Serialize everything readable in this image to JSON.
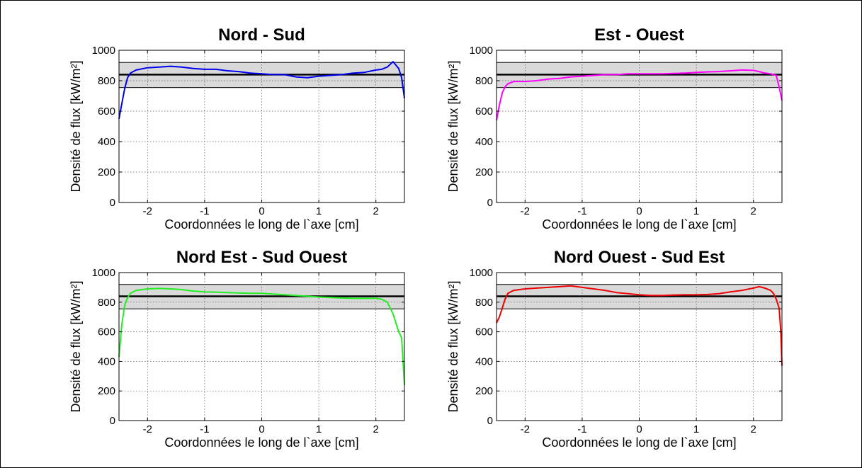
{
  "chart_data": [
    {
      "type": "line",
      "title": "Nord - Sud",
      "xlabel": "Coordonnées le long de l`axe [cm]",
      "ylabel": "Densité de flux [kW/m²]",
      "xlim": [
        -2.5,
        2.5
      ],
      "ylim": [
        0,
        1000
      ],
      "xticks": [
        -2,
        -1,
        0,
        1,
        2
      ],
      "yticks": [
        0,
        200,
        400,
        600,
        800,
        1000
      ],
      "grid": true,
      "reference_line": 840,
      "band": [
        755,
        920
      ],
      "series": [
        {
          "color": "#0000ee",
          "x": [
            -2.5,
            -2.45,
            -2.4,
            -2.35,
            -2.3,
            -2.2,
            -2.0,
            -1.8,
            -1.6,
            -1.4,
            -1.2,
            -1.0,
            -0.8,
            -0.6,
            -0.4,
            -0.2,
            0.0,
            0.2,
            0.4,
            0.6,
            0.8,
            1.0,
            1.2,
            1.4,
            1.6,
            1.8,
            2.0,
            2.1,
            2.2,
            2.3,
            2.4,
            2.45,
            2.5
          ],
          "y": [
            550,
            650,
            750,
            820,
            850,
            870,
            885,
            890,
            895,
            890,
            880,
            875,
            875,
            865,
            860,
            850,
            845,
            840,
            840,
            825,
            820,
            830,
            835,
            840,
            850,
            855,
            870,
            875,
            890,
            925,
            880,
            820,
            685
          ]
        }
      ]
    },
    {
      "type": "line",
      "title": "Est - Ouest",
      "xlabel": "Coordonnées le long de l`axe [cm]",
      "ylabel": "Densité de flux [kW/m²]",
      "xlim": [
        -2.5,
        2.5
      ],
      "ylim": [
        0,
        1000
      ],
      "xticks": [
        -2,
        -1,
        0,
        1,
        2
      ],
      "yticks": [
        0,
        200,
        400,
        600,
        800,
        1000
      ],
      "grid": true,
      "reference_line": 840,
      "band": [
        755,
        920
      ],
      "series": [
        {
          "color": "#ff00ff",
          "x": [
            -2.5,
            -2.45,
            -2.4,
            -2.35,
            -2.3,
            -2.2,
            -2.0,
            -1.8,
            -1.6,
            -1.4,
            -1.2,
            -1.0,
            -0.8,
            -0.6,
            -0.4,
            -0.2,
            0.0,
            0.2,
            0.4,
            0.6,
            0.8,
            1.0,
            1.2,
            1.4,
            1.6,
            1.8,
            2.0,
            2.1,
            2.2,
            2.3,
            2.4,
            2.45,
            2.5
          ],
          "y": [
            540,
            640,
            720,
            760,
            780,
            795,
            795,
            800,
            810,
            815,
            825,
            830,
            835,
            840,
            840,
            845,
            845,
            845,
            845,
            848,
            850,
            855,
            858,
            860,
            865,
            870,
            868,
            860,
            850,
            845,
            835,
            760,
            670
          ]
        }
      ]
    },
    {
      "type": "line",
      "title": "Nord Est - Sud Ouest",
      "xlabel": "Coordonnées le long de l`axe [cm]",
      "ylabel": "Densité de flux [kW/m²]",
      "xlim": [
        -2.5,
        2.5
      ],
      "ylim": [
        0,
        1000
      ],
      "xticks": [
        -2,
        -1,
        0,
        1,
        2
      ],
      "yticks": [
        0,
        200,
        400,
        600,
        800,
        1000
      ],
      "grid": true,
      "reference_line": 840,
      "band": [
        755,
        920
      ],
      "series": [
        {
          "color": "#22ee22",
          "x": [
            -2.5,
            -2.45,
            -2.4,
            -2.35,
            -2.3,
            -2.2,
            -2.0,
            -1.8,
            -1.6,
            -1.4,
            -1.2,
            -1.0,
            -0.8,
            -0.6,
            -0.4,
            -0.2,
            0.0,
            0.2,
            0.4,
            0.6,
            0.8,
            1.0,
            1.2,
            1.4,
            1.6,
            1.8,
            2.0,
            2.1,
            2.2,
            2.3,
            2.35,
            2.4,
            2.45,
            2.5
          ],
          "y": [
            430,
            650,
            780,
            830,
            860,
            880,
            890,
            893,
            890,
            885,
            875,
            870,
            868,
            865,
            862,
            860,
            860,
            855,
            850,
            845,
            840,
            835,
            832,
            828,
            826,
            826,
            826,
            820,
            800,
            720,
            660,
            600,
            560,
            240
          ]
        }
      ]
    },
    {
      "type": "line",
      "title": "Nord Ouest - Sud Est",
      "xlabel": "Coordonnées le long de l`axe [cm]",
      "ylabel": "Densité de flux [kW/m²]",
      "xlim": [
        -2.5,
        2.5
      ],
      "ylim": [
        0,
        1000
      ],
      "xticks": [
        -2,
        -1,
        0,
        1,
        2
      ],
      "yticks": [
        0,
        200,
        400,
        600,
        800,
        1000
      ],
      "grid": true,
      "reference_line": 840,
      "band": [
        755,
        920
      ],
      "series": [
        {
          "color": "#ee0000",
          "x": [
            -2.5,
            -2.45,
            -2.4,
            -2.35,
            -2.3,
            -2.2,
            -2.0,
            -1.8,
            -1.6,
            -1.4,
            -1.2,
            -1.0,
            -0.8,
            -0.6,
            -0.4,
            -0.2,
            0.0,
            0.2,
            0.4,
            0.6,
            0.8,
            1.0,
            1.2,
            1.4,
            1.6,
            1.8,
            2.0,
            2.1,
            2.2,
            2.3,
            2.35,
            2.4,
            2.45,
            2.48,
            2.5
          ],
          "y": [
            660,
            700,
            760,
            820,
            860,
            880,
            890,
            895,
            900,
            905,
            910,
            900,
            890,
            880,
            865,
            858,
            850,
            845,
            845,
            848,
            850,
            850,
            852,
            858,
            870,
            880,
            895,
            905,
            895,
            880,
            860,
            820,
            760,
            600,
            370
          ]
        }
      ]
    }
  ]
}
